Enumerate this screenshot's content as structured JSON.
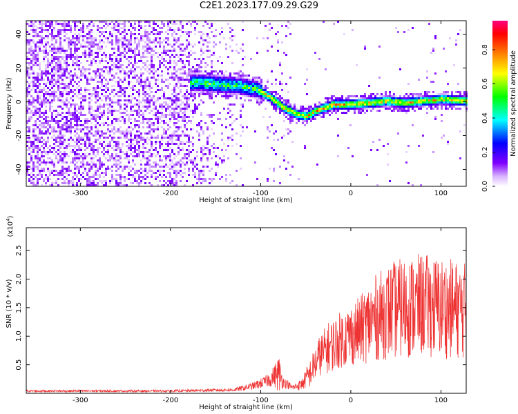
{
  "title": "C2E1.2023.177.09.29.G29",
  "chart_data": [
    {
      "type": "heatmap",
      "xlabel": "Height of straight line (km)",
      "ylabel": "Frequency (Hz)",
      "xlim": [
        -360,
        128
      ],
      "ylim": [
        -50,
        48
      ],
      "xticks": [
        -300,
        -200,
        -100,
        0,
        100
      ],
      "yticks": [
        -40,
        -20,
        0,
        20,
        40
      ],
      "colorbar": {
        "label": "Normalized spectral amplitude",
        "range": [
          0,
          0.97
        ],
        "ticks": [
          0.0,
          0.2,
          0.4,
          0.6,
          0.8
        ],
        "colormap": [
          "#ffffff",
          "#d9b3ff",
          "#8000ff",
          "#0000ff",
          "#00ffff",
          "#00ff00",
          "#ffff00",
          "#ff8000",
          "#ff0000",
          "#ff0080"
        ]
      },
      "ridge": {
        "description_points_x": [
          -175,
          -150,
          -125,
          -105,
          -90,
          -75,
          -60,
          -50,
          -40,
          -30,
          -20,
          0,
          20,
          40,
          60,
          80,
          100,
          128
        ],
        "description_points_y": [
          12,
          11,
          10,
          8,
          3,
          -3,
          -7,
          -8,
          -5,
          -3,
          -1,
          -1,
          0,
          1,
          0,
          1,
          2,
          1
        ]
      }
    },
    {
      "type": "line",
      "xlabel": "Height of straight line (km)",
      "ylabel": "SNR (10 * v/v)",
      "y_multiplier": "(x10^4)",
      "y_multiplier_base": "(x10",
      "y_multiplier_exp": "4",
      "y_multiplier_close": ")",
      "xlim": [
        -360,
        128
      ],
      "ylim": [
        0,
        2.9
      ],
      "xticks": [
        -300,
        -200,
        -100,
        0,
        100
      ],
      "yticks": [
        0.5,
        1.0,
        1.5,
        2.0,
        2.5
      ],
      "ytick_labels": [
        "0.5",
        "1.0",
        "1.5",
        "2.0",
        "2.5"
      ],
      "color": "#ee3333",
      "envelope_x": [
        -360,
        -200,
        -130,
        -110,
        -95,
        -85,
        -80,
        -75,
        -65,
        -55,
        -45,
        -35,
        -25,
        -10,
        10,
        25,
        45,
        60,
        80,
        100,
        128
      ],
      "envelope_mean": [
        0.04,
        0.04,
        0.06,
        0.12,
        0.2,
        0.3,
        0.35,
        0.2,
        0.1,
        0.15,
        0.35,
        0.65,
        0.8,
        0.95,
        1.1,
        1.3,
        1.45,
        1.5,
        1.55,
        1.5,
        1.45
      ],
      "envelope_spread": [
        0.02,
        0.02,
        0.03,
        0.06,
        0.1,
        0.18,
        0.35,
        0.1,
        0.05,
        0.1,
        0.25,
        0.35,
        0.45,
        0.5,
        0.6,
        0.75,
        0.85,
        0.9,
        0.9,
        0.9,
        0.85
      ]
    }
  ]
}
